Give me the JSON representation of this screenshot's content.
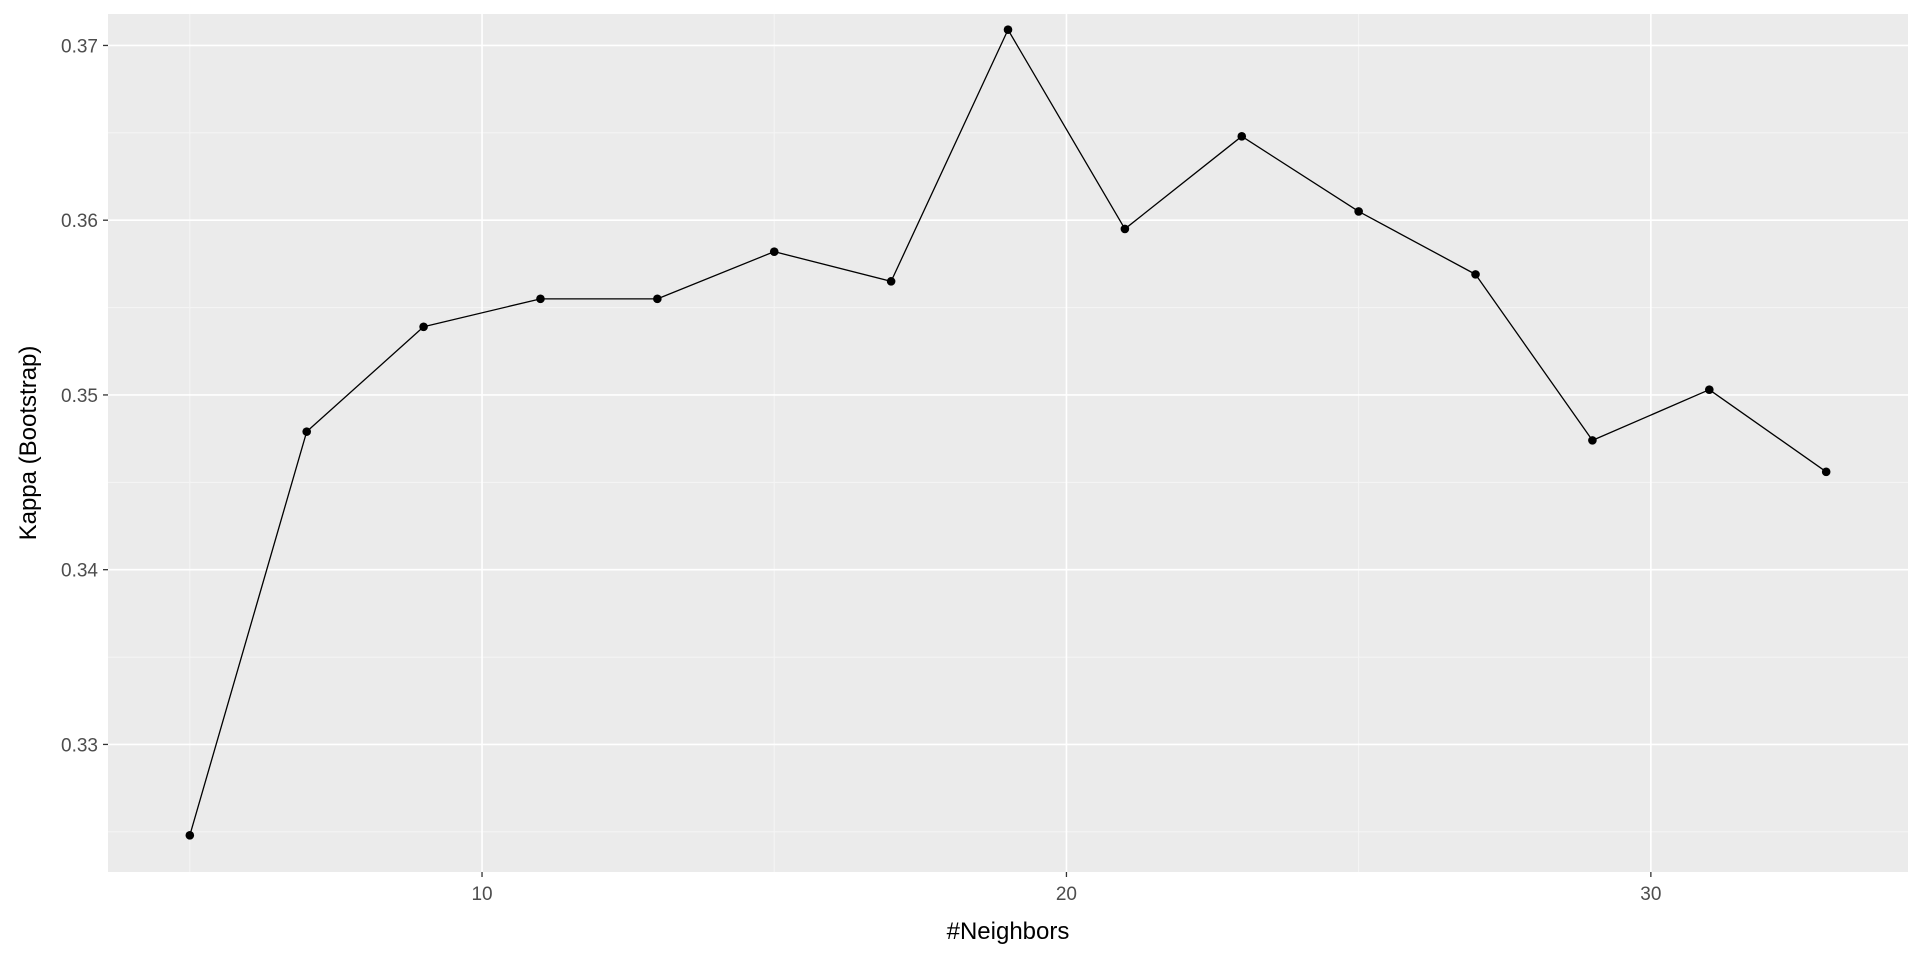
{
  "chart_data": {
    "type": "line",
    "title": "",
    "xlabel": "#Neighbors",
    "ylabel": "Kappa (Bootstrap)",
    "xlim": [
      3.6,
      34.4
    ],
    "ylim": [
      0.3227,
      0.3718
    ],
    "x_ticks": [
      10,
      20,
      30
    ],
    "x_tick_labels": [
      "10",
      "20",
      "30"
    ],
    "y_ticks": [
      0.33,
      0.34,
      0.35,
      0.36,
      0.37
    ],
    "y_tick_labels": [
      "0.33",
      "0.34",
      "0.35",
      "0.36",
      "0.37"
    ],
    "grid": true,
    "legend": "none",
    "series": [
      {
        "x": [
          5,
          7,
          9,
          11,
          13,
          15,
          17,
          19,
          21,
          23,
          25,
          27,
          29,
          31,
          33
        ],
        "y": [
          0.3248,
          0.3479,
          0.3539,
          0.3555,
          0.3555,
          0.3582,
          0.3565,
          0.3709,
          0.3595,
          0.3648,
          0.3605,
          0.3569,
          0.3474,
          0.3503,
          0.3456
        ]
      }
    ]
  },
  "colors": {
    "panel_background": "#ebebeb",
    "grid_major": "#ffffff",
    "grid_minor": "#f5f5f5",
    "line": "#000000",
    "point": "#000000",
    "tick_label": "#4d4d4d",
    "axis_title": "#000000",
    "tick_mark": "#333333"
  }
}
